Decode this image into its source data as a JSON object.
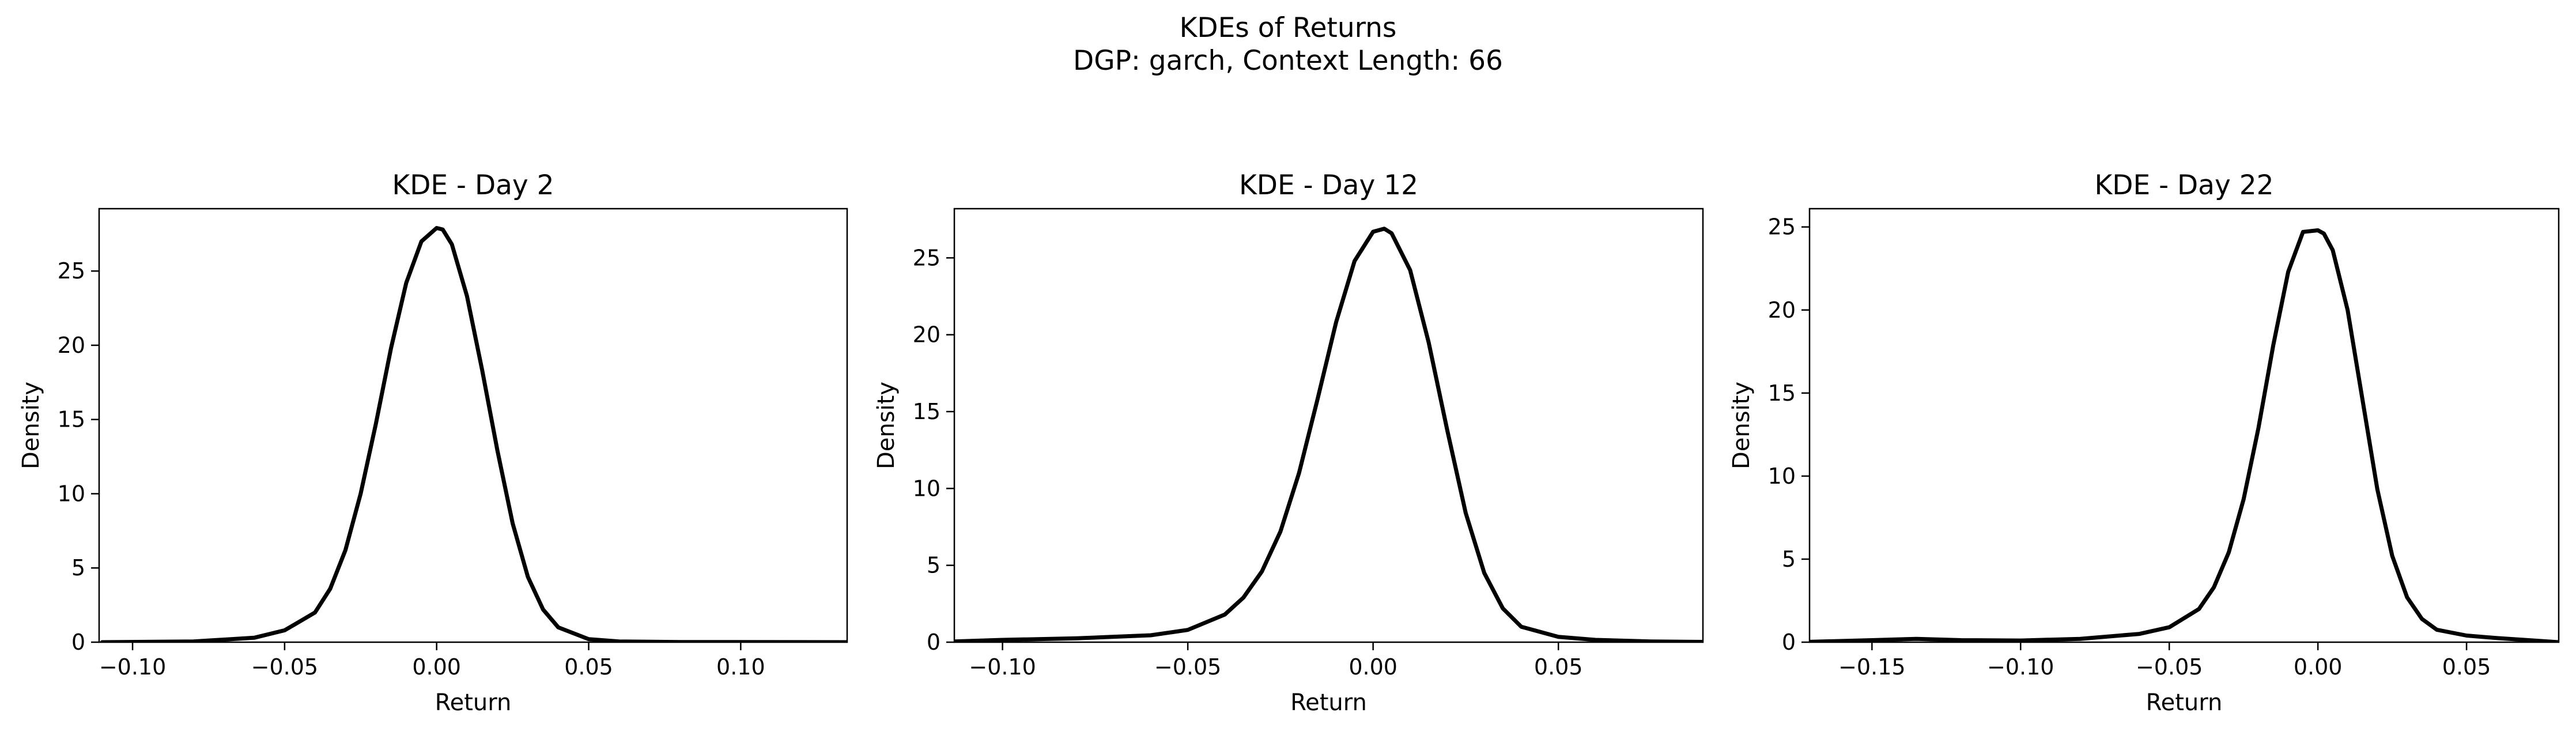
{
  "figure": {
    "title_line1": "KDEs of Returns",
    "title_line2": "DGP: garch, Context Length: 66"
  },
  "chart_data": [
    {
      "type": "line",
      "title": "KDE - Day 2",
      "xlabel": "Return",
      "ylabel": "Density",
      "xlim": [
        -0.111,
        0.135
      ],
      "ylim": [
        0,
        29.2
      ],
      "xticks": [
        -0.1,
        -0.05,
        0.0,
        0.05,
        0.1
      ],
      "xtick_labels": [
        "−0.10",
        "−0.05",
        "0.00",
        "0.05",
        "0.10"
      ],
      "yticks": [
        0,
        5,
        10,
        15,
        20,
        25
      ],
      "ytick_labels": [
        "0",
        "5",
        "10",
        "15",
        "20",
        "25"
      ],
      "grid": false,
      "series": [
        {
          "color": "#000000",
          "x": [
            -0.11,
            -0.08,
            -0.06,
            -0.05,
            -0.04,
            -0.035,
            -0.03,
            -0.025,
            -0.02,
            -0.015,
            -0.01,
            -0.005,
            0.0,
            0.002,
            0.005,
            0.01,
            0.015,
            0.02,
            0.025,
            0.03,
            0.035,
            0.04,
            0.05,
            0.06,
            0.08,
            0.135
          ],
          "y": [
            0.0,
            0.05,
            0.3,
            0.8,
            2.0,
            3.6,
            6.2,
            10.0,
            14.7,
            19.8,
            24.2,
            27.0,
            27.9,
            27.8,
            26.8,
            23.3,
            18.3,
            12.9,
            8.0,
            4.4,
            2.2,
            1.0,
            0.2,
            0.05,
            0.01,
            0.0
          ]
        }
      ]
    },
    {
      "type": "line",
      "title": "KDE - Day 12",
      "xlabel": "Return",
      "ylabel": "Density",
      "xlim": [
        -0.113,
        0.089
      ],
      "ylim": [
        0,
        28.2
      ],
      "xticks": [
        -0.1,
        -0.05,
        0.0,
        0.05
      ],
      "xtick_labels": [
        "−0.10",
        "−0.05",
        "0.00",
        "0.05"
      ],
      "yticks": [
        0,
        5,
        10,
        15,
        20,
        25
      ],
      "ytick_labels": [
        "0",
        "5",
        "10",
        "15",
        "20",
        "25"
      ],
      "grid": false,
      "series": [
        {
          "color": "#000000",
          "x": [
            -0.113,
            -0.1,
            -0.08,
            -0.06,
            -0.05,
            -0.04,
            -0.035,
            -0.03,
            -0.025,
            -0.02,
            -0.015,
            -0.01,
            -0.005,
            0.0,
            0.003,
            0.005,
            0.01,
            0.015,
            0.02,
            0.025,
            0.03,
            0.035,
            0.04,
            0.05,
            0.06,
            0.075,
            0.089
          ],
          "y": [
            0.05,
            0.15,
            0.25,
            0.45,
            0.8,
            1.8,
            2.9,
            4.6,
            7.2,
            11.0,
            15.8,
            20.8,
            24.8,
            26.7,
            26.9,
            26.6,
            24.2,
            19.5,
            13.8,
            8.4,
            4.5,
            2.2,
            1.0,
            0.35,
            0.15,
            0.05,
            0.02
          ]
        }
      ]
    },
    {
      "type": "line",
      "title": "KDE - Day 22",
      "xlabel": "Return",
      "ylabel": "Density",
      "xlim": [
        -0.171,
        0.081
      ],
      "ylim": [
        0,
        26.1
      ],
      "xticks": [
        -0.15,
        -0.1,
        -0.05,
        0.0,
        0.05
      ],
      "xtick_labels": [
        "−0.15",
        "−0.10",
        "−0.05",
        "0.00",
        "0.05"
      ],
      "yticks": [
        0,
        5,
        10,
        15,
        20,
        25
      ],
      "ytick_labels": [
        "0",
        "5",
        "10",
        "15",
        "20",
        "25"
      ],
      "grid": false,
      "series": [
        {
          "color": "#000000",
          "x": [
            -0.171,
            -0.15,
            -0.135,
            -0.12,
            -0.1,
            -0.08,
            -0.06,
            -0.05,
            -0.04,
            -0.035,
            -0.03,
            -0.025,
            -0.02,
            -0.015,
            -0.01,
            -0.005,
            0.0,
            0.002,
            0.005,
            0.01,
            0.015,
            0.02,
            0.025,
            0.03,
            0.035,
            0.04,
            0.05,
            0.06,
            0.081
          ],
          "y": [
            0.02,
            0.12,
            0.2,
            0.12,
            0.1,
            0.2,
            0.5,
            0.9,
            2.0,
            3.3,
            5.4,
            8.6,
            12.9,
            17.9,
            22.3,
            24.7,
            24.8,
            24.6,
            23.6,
            20.0,
            14.6,
            9.2,
            5.2,
            2.7,
            1.4,
            0.75,
            0.4,
            0.25,
            0.0
          ]
        }
      ]
    }
  ]
}
